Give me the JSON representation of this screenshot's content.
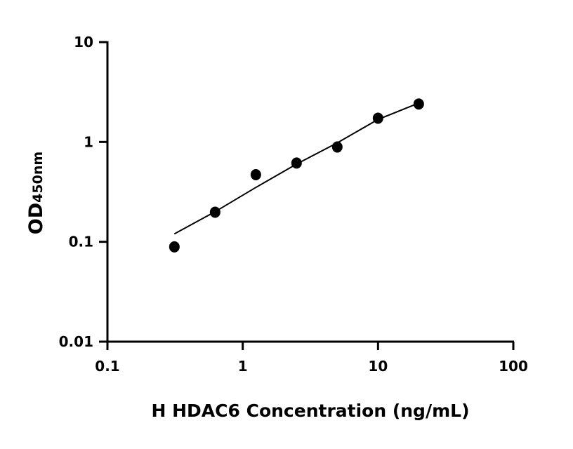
{
  "chart_data": {
    "type": "scatter",
    "title": "",
    "xlabel": "H HDAC6 Concentration (ng/mL)",
    "ylabel_main": "OD",
    "ylabel_sub": "450nm",
    "x_scale": "log",
    "y_scale": "log",
    "xlim": [
      0.1,
      100
    ],
    "ylim": [
      0.01,
      10
    ],
    "x_ticks": [
      "0.1",
      "1",
      "10",
      "100"
    ],
    "y_ticks": [
      "0.01",
      "0.1",
      "1",
      "10"
    ],
    "grid": false,
    "points": [
      {
        "x": 0.3125,
        "y": 0.089
      },
      {
        "x": 0.625,
        "y": 0.198
      },
      {
        "x": 1.25,
        "y": 0.47
      },
      {
        "x": 2.5,
        "y": 0.615
      },
      {
        "x": 5,
        "y": 0.89
      },
      {
        "x": 10,
        "y": 1.73
      },
      {
        "x": 20,
        "y": 2.4
      }
    ],
    "fit_curve": [
      {
        "x": 0.3125,
        "y": 0.12
      },
      {
        "x": 0.625,
        "y": 0.2
      },
      {
        "x": 1.25,
        "y": 0.35
      },
      {
        "x": 2.5,
        "y": 0.6
      },
      {
        "x": 5,
        "y": 0.98
      },
      {
        "x": 10,
        "y": 1.68
      },
      {
        "x": 20,
        "y": 2.45
      }
    ],
    "color": "#000000"
  }
}
